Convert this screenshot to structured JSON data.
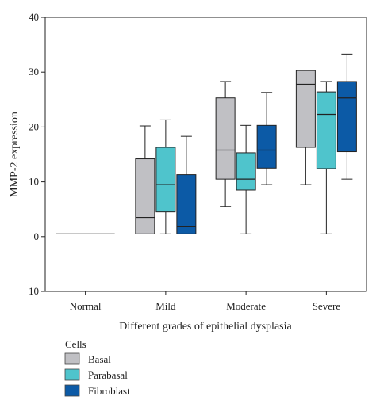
{
  "chart_data": {
    "type": "boxplot",
    "title": "",
    "xlabel": "Different grades of epithelial dysplasia",
    "ylabel": "MMP-2 expression",
    "ylim": [
      -10,
      40
    ],
    "yticks": [
      -10,
      0,
      10,
      20,
      30,
      40
    ],
    "categories": [
      "Normal",
      "Mild",
      "Moderate",
      "Severe"
    ],
    "legend_title": "Cells",
    "legend_position": "bottom-left",
    "normal_line_value": 0.5,
    "series": [
      {
        "name": "Basal",
        "color": "#c0c0c4",
        "boxes": [
          null,
          {
            "min": 0.5,
            "q1": 0.5,
            "median": 3.5,
            "q3": 14.2,
            "max": 20.2
          },
          {
            "min": 5.5,
            "q1": 10.5,
            "median": 15.8,
            "q3": 25.3,
            "max": 28.3
          },
          {
            "min": 9.5,
            "q1": 16.3,
            "median": 27.8,
            "q3": 30.3,
            "max": 30.3
          }
        ]
      },
      {
        "name": "Parabasal",
        "color": "#4fc4cc",
        "boxes": [
          null,
          {
            "min": 0.5,
            "q1": 4.5,
            "median": 9.5,
            "q3": 16.3,
            "max": 21.3
          },
          {
            "min": 0.5,
            "q1": 8.5,
            "median": 10.5,
            "q3": 15.3,
            "max": 20.3
          },
          {
            "min": 0.5,
            "q1": 12.4,
            "median": 22.3,
            "q3": 26.4,
            "max": 28.3
          }
        ]
      },
      {
        "name": "Fibroblast",
        "color": "#0c5aa6",
        "boxes": [
          null,
          {
            "min": 0.5,
            "q1": 0.5,
            "median": 1.8,
            "q3": 11.3,
            "max": 18.3
          },
          {
            "min": 9.5,
            "q1": 12.5,
            "median": 15.8,
            "q3": 20.3,
            "max": 26.3
          },
          {
            "min": 10.5,
            "q1": 15.5,
            "median": 25.3,
            "q3": 28.3,
            "max": 33.3
          }
        ]
      }
    ]
  }
}
